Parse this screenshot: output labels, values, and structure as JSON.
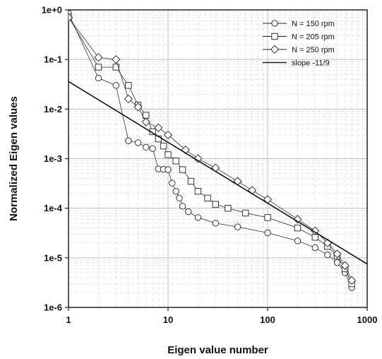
{
  "chart_data": {
    "type": "scatter",
    "title": "",
    "xlabel": "Eigen value number",
    "ylabel": "Normalized Eigen values",
    "xscale": "log",
    "yscale": "log",
    "xlim": [
      1,
      1000
    ],
    "ylim": [
      1e-06,
      1
    ],
    "x_ticks": [
      1,
      10,
      100,
      1000
    ],
    "x_tick_labels": [
      "1",
      "10",
      "100",
      "1000"
    ],
    "y_ticks": [
      1e-06,
      1e-05,
      0.0001,
      0.001,
      0.01,
      0.1,
      1
    ],
    "y_tick_labels": [
      "1e-6",
      "1e-5",
      "1e-4",
      "1e-3",
      "1e-2",
      "1e-1",
      "1e+0"
    ],
    "grid": true,
    "legend_position": "top-right",
    "series": [
      {
        "name": "N = 150 rpm",
        "marker": "circle",
        "points": [
          [
            1,
            0.85
          ],
          [
            2,
            0.042
          ],
          [
            3,
            0.03
          ],
          [
            4,
            0.0023
          ],
          [
            5,
            0.0021
          ],
          [
            6,
            0.0017
          ],
          [
            7,
            0.0016
          ],
          [
            8,
            0.00062
          ],
          [
            9,
            0.00061
          ],
          [
            10,
            0.0006
          ],
          [
            11,
            0.00032
          ],
          [
            12,
            0.00022
          ],
          [
            13,
            0.00016
          ],
          [
            14,
            0.00011
          ],
          [
            16,
            8.5e-05
          ],
          [
            20,
            6.5e-05
          ],
          [
            30,
            5e-05
          ],
          [
            50,
            4.2e-05
          ],
          [
            100,
            3.2e-05
          ],
          [
            200,
            2.2e-05
          ],
          [
            300,
            1.6e-05
          ],
          [
            400,
            1.15e-05
          ],
          [
            500,
            8e-06
          ],
          [
            600,
            5e-06
          ],
          [
            700,
            2.5e-06
          ]
        ]
      },
      {
        "name": "N = 205 rpm",
        "marker": "square",
        "points": [
          [
            1,
            0.72
          ],
          [
            2,
            0.07
          ],
          [
            3,
            0.07
          ],
          [
            4,
            0.03
          ],
          [
            5,
            0.012
          ],
          [
            6,
            0.0075
          ],
          [
            7,
            0.0035
          ],
          [
            8,
            0.0025
          ],
          [
            9,
            0.0018
          ],
          [
            10,
            0.0012
          ],
          [
            12,
            0.0009
          ],
          [
            14,
            0.0006
          ],
          [
            17,
            0.00035
          ],
          [
            20,
            0.00022
          ],
          [
            25,
            0.00016
          ],
          [
            30,
            0.00012
          ],
          [
            40,
            0.0001
          ],
          [
            60,
            8e-05
          ],
          [
            100,
            6.5e-05
          ],
          [
            200,
            4e-05
          ],
          [
            300,
            2.6e-05
          ],
          [
            400,
            1.7e-05
          ],
          [
            500,
            1.1e-05
          ],
          [
            600,
            6e-06
          ],
          [
            700,
            3e-06
          ]
        ]
      },
      {
        "name": "N = 250 rpm",
        "marker": "diamond",
        "points": [
          [
            1,
            0.7
          ],
          [
            2,
            0.11
          ],
          [
            3,
            0.1
          ],
          [
            4,
            0.016
          ],
          [
            5,
            0.011
          ],
          [
            6,
            0.0055
          ],
          [
            8,
            0.0042
          ],
          [
            10,
            0.003
          ],
          [
            15,
            0.0015
          ],
          [
            20,
            0.001
          ],
          [
            30,
            0.00065
          ],
          [
            50,
            0.00035
          ],
          [
            70,
            0.00023
          ],
          [
            100,
            0.00015
          ],
          [
            200,
            6e-05
          ],
          [
            300,
            3.5e-05
          ],
          [
            400,
            2e-05
          ],
          [
            500,
            1.2e-05
          ],
          [
            600,
            7e-06
          ],
          [
            700,
            3.5e-06
          ]
        ]
      },
      {
        "name": "slope -11/9",
        "marker": "line",
        "points": [
          [
            1,
            0.036
          ],
          [
            1000,
            7.5e-06
          ]
        ]
      }
    ]
  }
}
